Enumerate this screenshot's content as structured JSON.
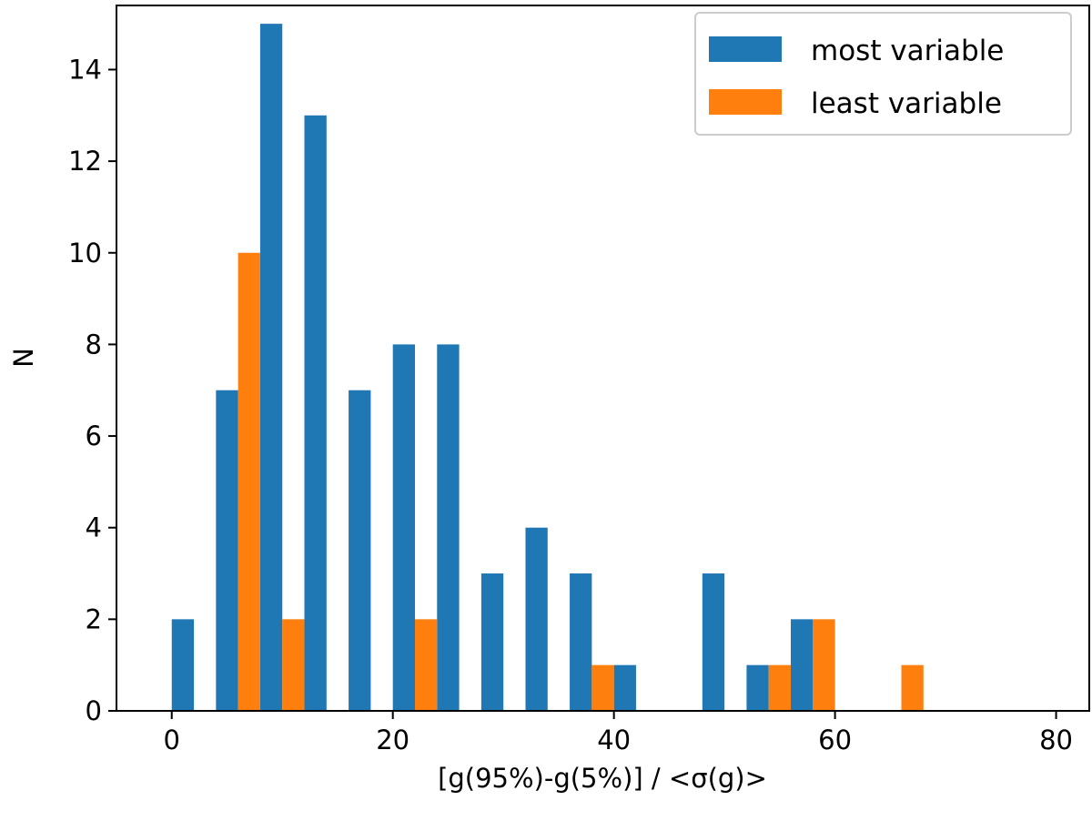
{
  "chart_data": {
    "type": "bar",
    "title": "",
    "xlabel": "[g(95%)-g(5%)] / <σ(g)>",
    "ylabel": "N",
    "xlim": [
      -5,
      83
    ],
    "ylim": [
      0,
      15.4
    ],
    "xticks": [
      0,
      20,
      40,
      60,
      80
    ],
    "yticks": [
      0,
      2,
      4,
      6,
      8,
      10,
      12,
      14
    ],
    "bin_edges": [
      0,
      4,
      8,
      12,
      16,
      20,
      24,
      28,
      32,
      36,
      40,
      44,
      48,
      52,
      56,
      60,
      64,
      68,
      72,
      76,
      80
    ],
    "legend_position": "top-right",
    "series": [
      {
        "name": "most variable",
        "color": "#1f77b4",
        "values": [
          2,
          7,
          15,
          13,
          7,
          8,
          8,
          3,
          4,
          3,
          1,
          0,
          3,
          1,
          2,
          0,
          0,
          0,
          0,
          0
        ]
      },
      {
        "name": "least variable",
        "color": "#ff7f0e",
        "values": [
          0,
          10,
          2,
          0,
          0,
          2,
          0,
          0,
          0,
          1,
          0,
          0,
          0,
          1,
          2,
          0,
          1,
          0,
          0,
          0
        ]
      }
    ]
  }
}
